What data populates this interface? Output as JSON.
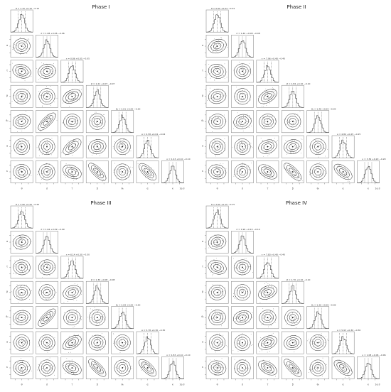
{
  "figure": {
    "phases": [
      {
        "title": "Phase I"
      },
      {
        "title": "Phase II"
      },
      {
        "title": "Phase III"
      },
      {
        "title": "Phase IV"
      }
    ],
    "axis_symbols": [
      "θ",
      "σ",
      "τ",
      "β",
      "θ₀",
      "α",
      "κ"
    ],
    "axis_offset_label": "1e-3"
  },
  "chart_data": [
    {
      "type": "corner",
      "title": "Phase I",
      "parameters": [
        "θ",
        "σ",
        "τ",
        "β",
        "θ₀",
        "α",
        "κ"
      ],
      "marginal_summaries": [
        {
          "param": "θ",
          "label": "θ = 1.70 +0.10 −0.10"
        },
        {
          "param": "σ",
          "label": "σ = 1.08 +0.06 −0.06"
        },
        {
          "param": "τ",
          "label": "τ = 0.86 +0.05 −0.05"
        },
        {
          "param": "β",
          "label": "β = 1.21 +0.07 −0.07"
        },
        {
          "param": "θ₀",
          "label": "θ₀ = 3.61 +0.20 −0.20"
        },
        {
          "param": "α",
          "label": "α = 0.58 +0.04 −0.04"
        },
        {
          "param": "κ",
          "label": "κ = 1.43 +0.10 −0.10"
        }
      ],
      "pairwise_correlation": [
        [
          0,
          0,
          0,
          0,
          0,
          0
        ],
        [
          0.1,
          0,
          0,
          0,
          0,
          0
        ],
        [
          -0.3,
          0.2,
          0,
          0,
          0,
          0
        ],
        [
          0.1,
          0,
          0.4,
          0,
          0,
          0
        ],
        [
          0.2,
          0.8,
          0.1,
          0,
          0,
          0
        ],
        [
          0,
          0,
          0.6,
          0.2,
          0,
          0
        ],
        [
          -0.1,
          0,
          -0.4,
          -0.8,
          0,
          -0.7
        ]
      ]
    },
    {
      "type": "corner",
      "title": "Phase II",
      "parameters": [
        "θ",
        "σ",
        "τ",
        "β",
        "θ₀",
        "α",
        "κ"
      ],
      "marginal_summaries": [
        {
          "param": "θ",
          "label": "θ = 0.60 +0.04 −0.04"
        },
        {
          "param": "σ",
          "label": "σ = 1.40 +0.08 −0.08"
        },
        {
          "param": "τ",
          "label": "τ = 7.96 +0.40 −0.40"
        },
        {
          "param": "β",
          "label": "β = 1.84 +0.10 −0.10"
        },
        {
          "param": "θ₀",
          "label": "θ₀ = 1.48 +0.09 −0.09"
        },
        {
          "param": "α",
          "label": "α = 4.84 +0.25 −0.25"
        },
        {
          "param": "κ",
          "label": "κ = 3.39 +0.20 −0.20"
        }
      ],
      "pairwise_correlation": [
        [
          0,
          0,
          0,
          0,
          0,
          0
        ],
        [
          0.3,
          0,
          0,
          0,
          0,
          0
        ],
        [
          -0.2,
          0.1,
          0,
          0,
          0,
          0
        ],
        [
          0.2,
          0,
          0.5,
          0,
          0,
          0
        ],
        [
          0.1,
          0.2,
          0.1,
          0,
          0,
          0
        ],
        [
          0,
          0,
          0.3,
          0.2,
          0,
          0
        ],
        [
          -0.2,
          0,
          -0.5,
          -0.8,
          0,
          -0.6
        ]
      ]
    },
    {
      "type": "corner",
      "title": "Phase III",
      "parameters": [
        "θ",
        "σ",
        "τ",
        "β",
        "θ₀",
        "α",
        "κ"
      ],
      "marginal_summaries": [
        {
          "param": "θ",
          "label": "θ = 3.90 +0.20 −0.20"
        },
        {
          "param": "σ",
          "label": "σ = 1.64 +0.09 −0.09"
        },
        {
          "param": "τ",
          "label": "τ = 6.14 +0.30 −0.30"
        },
        {
          "param": "β",
          "label": "β = 1.39 +0.08 −0.08"
        },
        {
          "param": "θ₀",
          "label": "θ₀ = 3.69 +0.20 −0.20"
        },
        {
          "param": "α",
          "label": "α = 5.78 +0.30 −0.30"
        },
        {
          "param": "κ",
          "label": "κ = 1.83 +0.10 −0.10"
        }
      ],
      "pairwise_correlation": [
        [
          0,
          0,
          0,
          0,
          0,
          0
        ],
        [
          0.2,
          0,
          0,
          0,
          0,
          0
        ],
        [
          -0.1,
          0.1,
          0,
          0,
          0,
          0
        ],
        [
          0.1,
          0,
          0.3,
          0,
          0,
          0
        ],
        [
          0.2,
          0.8,
          0.1,
          0,
          0,
          0
        ],
        [
          0,
          0,
          0.5,
          0.1,
          0,
          0
        ],
        [
          -0.1,
          0,
          -0.4,
          -0.8,
          0,
          -0.7
        ]
      ]
    },
    {
      "type": "corner",
      "title": "Phase IV",
      "parameters": [
        "θ",
        "σ",
        "τ",
        "β",
        "θ₀",
        "α",
        "κ"
      ],
      "marginal_summaries": [
        {
          "param": "θ",
          "label": "θ = 2.60 +0.15 −0.15"
        },
        {
          "param": "σ",
          "label": "σ = 1.99 +0.10 −0.10"
        },
        {
          "param": "τ",
          "label": "τ = 7.83 +0.40 −0.40"
        },
        {
          "param": "β",
          "label": "β = 1.70 +0.10 −0.10"
        },
        {
          "param": "θ₀",
          "label": "θ₀ = 1.36 +0.08 −0.08"
        },
        {
          "param": "α",
          "label": "α = 5.93 +0.30 −0.30"
        },
        {
          "param": "κ",
          "label": "κ = 1.08 +0.06 −0.06"
        }
      ],
      "pairwise_correlation": [
        [
          0,
          0,
          0,
          0,
          0,
          0
        ],
        [
          0.2,
          0,
          0,
          0,
          0,
          0
        ],
        [
          -0.3,
          0.1,
          0,
          0,
          0,
          0
        ],
        [
          0.1,
          0,
          0.4,
          0,
          0,
          0
        ],
        [
          0.1,
          0.3,
          0.1,
          0,
          0,
          0
        ],
        [
          0,
          0,
          0.4,
          0.2,
          0,
          0
        ],
        [
          -0.2,
          0,
          -0.5,
          -0.8,
          0,
          -0.6
        ]
      ]
    }
  ]
}
